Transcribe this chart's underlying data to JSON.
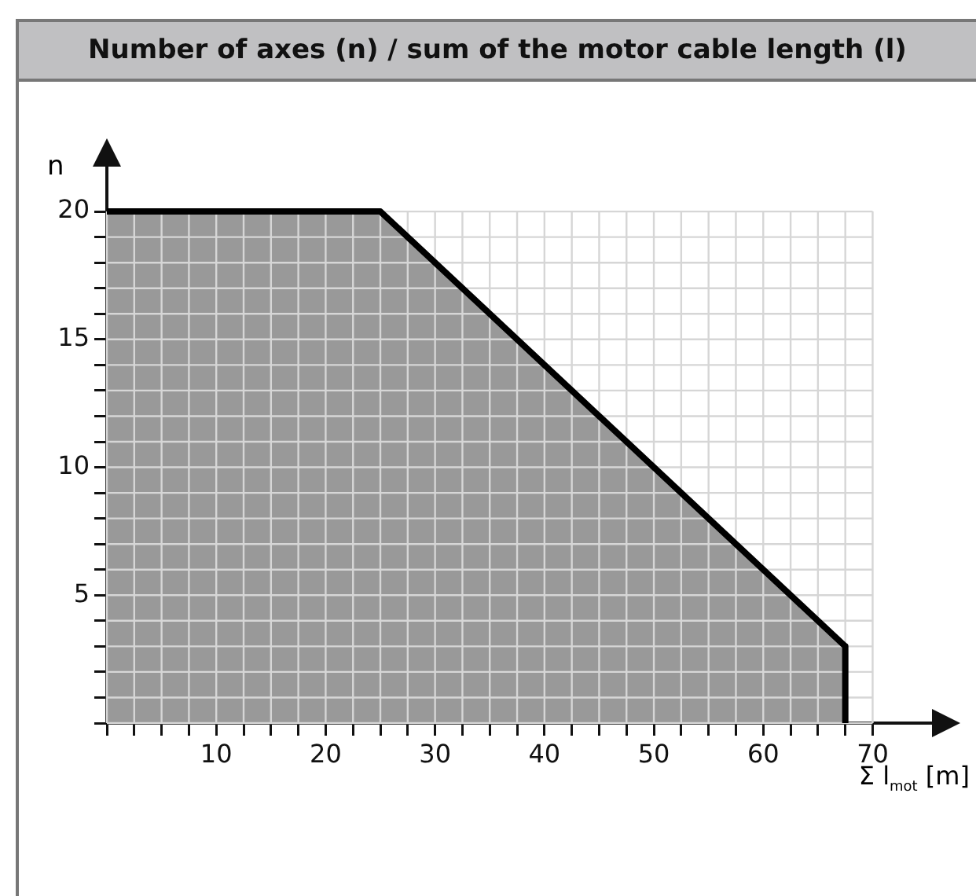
{
  "chart_data": {
    "type": "area",
    "title": "Number of axes (n) / sum of the motor cable length (l)",
    "xlabel": "Σ l$_{mot}$ [m]",
    "ylabel": "n",
    "x": [
      0,
      25,
      67.5,
      67.5
    ],
    "series": [
      {
        "color": "#999999",
        "values": [
          20,
          20,
          3,
          0
        ]
      }
    ],
    "xlim": [
      0,
      76
    ],
    "ylim": [
      0,
      22
    ],
    "xticks": [
      {
        "value": 0,
        "label": null
      },
      {
        "value": 2.5,
        "label": null
      },
      {
        "value": 5,
        "label": null
      },
      {
        "value": 7.5,
        "label": null
      },
      10,
      {
        "value": 12.5,
        "label": null
      },
      {
        "value": 15,
        "label": null
      },
      {
        "value": 17.5,
        "label": null
      },
      20,
      {
        "value": 22.5,
        "label": null
      },
      {
        "value": 25,
        "label": null
      },
      {
        "value": 27.5,
        "label": null
      },
      30,
      {
        "value": 32.5,
        "label": null
      },
      {
        "value": 35,
        "label": null
      },
      {
        "value": 37.5,
        "label": null
      },
      40,
      {
        "value": 42.5,
        "label": null
      },
      {
        "value": 45,
        "label": null
      },
      {
        "value": 47.5,
        "label": null
      },
      50,
      {
        "value": 52.5,
        "label": null
      },
      {
        "value": 55,
        "label": null
      },
      {
        "value": 57.5,
        "label": null
      },
      60,
      {
        "value": 62.5,
        "label": null
      },
      {
        "value": 65,
        "label": null
      },
      {
        "value": 67.5,
        "label": null
      },
      70
    ],
    "yticks": [
      {
        "value": 0,
        "label": null
      },
      {
        "value": 1,
        "label": null
      },
      {
        "value": 2,
        "label": null
      },
      {
        "value": 3,
        "label": null
      },
      {
        "value": 4,
        "label": null
      },
      5,
      {
        "value": 6,
        "label": null
      },
      {
        "value": 7,
        "label": null
      },
      {
        "value": 8,
        "label": null
      },
      {
        "value": 9,
        "label": null
      },
      10,
      {
        "value": 11,
        "label": null
      },
      {
        "value": 12,
        "label": null
      },
      {
        "value": 13,
        "label": null
      },
      {
        "value": 14,
        "label": null
      },
      15,
      {
        "value": 16,
        "label": null
      },
      {
        "value": 17,
        "label": null
      },
      {
        "value": 18,
        "label": null
      },
      {
        "value": 19,
        "label": null
      },
      20
    ],
    "grid": true,
    "legend": false
  }
}
